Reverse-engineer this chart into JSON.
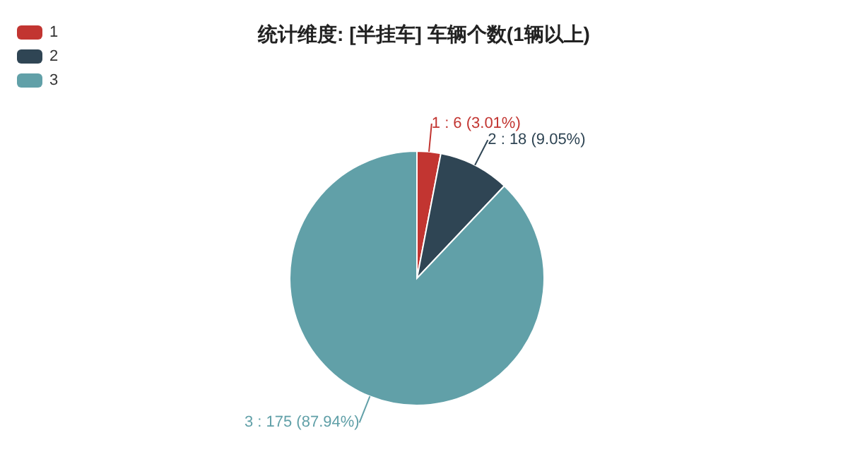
{
  "chart_data": {
    "type": "pie",
    "title": "统计维度: [半挂车] 车辆个数(1辆以上)",
    "categories": [
      "1",
      "2",
      "3"
    ],
    "values": [
      6,
      18,
      175
    ],
    "value_labels": [
      "1 : 6 (3.01%)",
      "2 : 18 (9.05%)",
      "3 : 175 (87.94%)"
    ],
    "colors": [
      "#c23531",
      "#2f4554",
      "#61a0a8"
    ],
    "legend": "top left"
  }
}
